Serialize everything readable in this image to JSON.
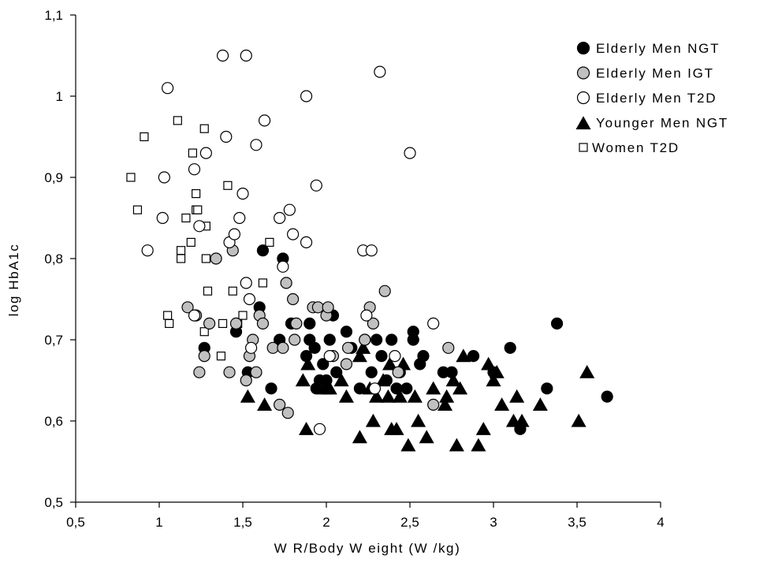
{
  "chart_data": {
    "type": "scatter",
    "title": "",
    "xlabel": "W R/Body W eight (W /kg)",
    "ylabel": "log HbA1c",
    "xlim": [
      0.5,
      4
    ],
    "ylim": [
      0.5,
      1.1
    ],
    "x_ticks": [
      {
        "value": 0.5,
        "label": "0,5"
      },
      {
        "value": 1,
        "label": "1"
      },
      {
        "value": 1.5,
        "label": "1,5"
      },
      {
        "value": 2,
        "label": "2"
      },
      {
        "value": 2.5,
        "label": "2,5"
      },
      {
        "value": 3,
        "label": "3"
      },
      {
        "value": 3.5,
        "label": "3,5"
      },
      {
        "value": 4,
        "label": "4"
      }
    ],
    "y_ticks": [
      {
        "value": 0.5,
        "label": "0,5"
      },
      {
        "value": 0.6,
        "label": "0,6"
      },
      {
        "value": 0.7,
        "label": "0,7"
      },
      {
        "value": 0.8,
        "label": "0,8"
      },
      {
        "value": 0.9,
        "label": "0,9"
      },
      {
        "value": 1.0,
        "label": "1"
      },
      {
        "value": 1.1,
        "label": "1,1"
      }
    ],
    "grid": false,
    "legend_position": "top-right",
    "series": [
      {
        "name": "Elderly Men NGT",
        "marker": "circle",
        "fill": "#000000",
        "points": [
          [
            1.27,
            0.69
          ],
          [
            1.46,
            0.71
          ],
          [
            1.53,
            0.66
          ],
          [
            1.6,
            0.74
          ],
          [
            1.62,
            0.81
          ],
          [
            1.67,
            0.64
          ],
          [
            1.72,
            0.7
          ],
          [
            1.74,
            0.8
          ],
          [
            1.79,
            0.72
          ],
          [
            1.88,
            0.68
          ],
          [
            1.9,
            0.7
          ],
          [
            1.9,
            0.72
          ],
          [
            1.93,
            0.69
          ],
          [
            1.94,
            0.64
          ],
          [
            1.96,
            0.65
          ],
          [
            1.98,
            0.67
          ],
          [
            2.0,
            0.65
          ],
          [
            2.02,
            0.7
          ],
          [
            2.04,
            0.73
          ],
          [
            2.06,
            0.66
          ],
          [
            2.12,
            0.71
          ],
          [
            2.15,
            0.69
          ],
          [
            2.2,
            0.64
          ],
          [
            2.23,
            0.7
          ],
          [
            2.27,
            0.66
          ],
          [
            2.3,
            0.7
          ],
          [
            2.33,
            0.68
          ],
          [
            2.36,
            0.65
          ],
          [
            2.39,
            0.7
          ],
          [
            2.42,
            0.64
          ],
          [
            2.44,
            0.66
          ],
          [
            2.48,
            0.64
          ],
          [
            2.52,
            0.71
          ],
          [
            2.52,
            0.7
          ],
          [
            2.56,
            0.67
          ],
          [
            2.58,
            0.68
          ],
          [
            2.7,
            0.66
          ],
          [
            2.75,
            0.66
          ],
          [
            2.88,
            0.68
          ],
          [
            3.0,
            0.66
          ],
          [
            3.1,
            0.69
          ],
          [
            3.16,
            0.59
          ],
          [
            3.32,
            0.64
          ],
          [
            3.38,
            0.72
          ],
          [
            3.68,
            0.63
          ]
        ]
      },
      {
        "name": "Elderly Men IGT",
        "marker": "circle",
        "fill": "#c0c0c0",
        "points": [
          [
            1.17,
            0.74
          ],
          [
            1.22,
            0.73
          ],
          [
            1.24,
            0.66
          ],
          [
            1.27,
            0.68
          ],
          [
            1.3,
            0.72
          ],
          [
            1.34,
            0.8
          ],
          [
            1.42,
            0.66
          ],
          [
            1.44,
            0.81
          ],
          [
            1.46,
            0.72
          ],
          [
            1.52,
            0.65
          ],
          [
            1.54,
            0.68
          ],
          [
            1.56,
            0.7
          ],
          [
            1.58,
            0.66
          ],
          [
            1.6,
            0.73
          ],
          [
            1.62,
            0.72
          ],
          [
            1.68,
            0.69
          ],
          [
            1.72,
            0.62
          ],
          [
            1.74,
            0.69
          ],
          [
            1.76,
            0.77
          ],
          [
            1.77,
            0.61
          ],
          [
            1.8,
            0.75
          ],
          [
            1.81,
            0.7
          ],
          [
            1.82,
            0.72
          ],
          [
            1.92,
            0.74
          ],
          [
            1.95,
            0.74
          ],
          [
            2.0,
            0.73
          ],
          [
            2.01,
            0.74
          ],
          [
            2.04,
            0.68
          ],
          [
            2.12,
            0.67
          ],
          [
            2.13,
            0.69
          ],
          [
            2.23,
            0.7
          ],
          [
            2.26,
            0.74
          ],
          [
            2.28,
            0.72
          ],
          [
            2.35,
            0.76
          ],
          [
            2.43,
            0.66
          ],
          [
            2.64,
            0.62
          ],
          [
            2.73,
            0.69
          ]
        ]
      },
      {
        "name": "Elderly Men T2D",
        "marker": "circle",
        "fill": "#ffffff",
        "points": [
          [
            0.93,
            0.81
          ],
          [
            1.02,
            0.85
          ],
          [
            1.03,
            0.9
          ],
          [
            1.05,
            1.01
          ],
          [
            1.21,
            0.73
          ],
          [
            1.21,
            0.91
          ],
          [
            1.24,
            0.84
          ],
          [
            1.28,
            0.93
          ],
          [
            1.38,
            1.05
          ],
          [
            1.4,
            0.95
          ],
          [
            1.42,
            0.82
          ],
          [
            1.45,
            0.83
          ],
          [
            1.48,
            0.85
          ],
          [
            1.5,
            0.88
          ],
          [
            1.52,
            0.77
          ],
          [
            1.54,
            0.75
          ],
          [
            1.55,
            0.69
          ],
          [
            1.52,
            1.05
          ],
          [
            1.58,
            0.94
          ],
          [
            1.63,
            0.97
          ],
          [
            1.72,
            0.85
          ],
          [
            1.74,
            0.79
          ],
          [
            1.78,
            0.86
          ],
          [
            1.8,
            0.83
          ],
          [
            1.88,
            1.0
          ],
          [
            1.88,
            0.82
          ],
          [
            1.94,
            0.89
          ],
          [
            1.96,
            0.59
          ],
          [
            2.02,
            0.68
          ],
          [
            2.22,
            0.81
          ],
          [
            2.24,
            0.73
          ],
          [
            2.27,
            0.81
          ],
          [
            2.29,
            0.64
          ],
          [
            2.32,
            1.03
          ],
          [
            2.41,
            0.68
          ],
          [
            2.5,
            0.93
          ],
          [
            2.64,
            0.72
          ]
        ]
      },
      {
        "name": "Younger Men NGT",
        "marker": "triangle",
        "fill": "#000000",
        "points": [
          [
            1.53,
            0.63
          ],
          [
            1.63,
            0.62
          ],
          [
            1.86,
            0.65
          ],
          [
            1.88,
            0.59
          ],
          [
            1.89,
            0.67
          ],
          [
            1.99,
            0.64
          ],
          [
            2.02,
            0.64
          ],
          [
            2.09,
            0.65
          ],
          [
            2.12,
            0.63
          ],
          [
            2.2,
            0.58
          ],
          [
            2.2,
            0.68
          ],
          [
            2.22,
            0.69
          ],
          [
            2.26,
            0.64
          ],
          [
            2.28,
            0.6
          ],
          [
            2.3,
            0.63
          ],
          [
            2.34,
            0.65
          ],
          [
            2.37,
            0.63
          ],
          [
            2.38,
            0.67
          ],
          [
            2.39,
            0.59
          ],
          [
            2.42,
            0.59
          ],
          [
            2.44,
            0.63
          ],
          [
            2.46,
            0.67
          ],
          [
            2.49,
            0.57
          ],
          [
            2.53,
            0.63
          ],
          [
            2.55,
            0.6
          ],
          [
            2.6,
            0.58
          ],
          [
            2.64,
            0.64
          ],
          [
            2.71,
            0.62
          ],
          [
            2.72,
            0.63
          ],
          [
            2.76,
            0.65
          ],
          [
            2.78,
            0.57
          ],
          [
            2.8,
            0.64
          ],
          [
            2.82,
            0.68
          ],
          [
            2.91,
            0.57
          ],
          [
            2.94,
            0.59
          ],
          [
            2.97,
            0.67
          ],
          [
            3.0,
            0.65
          ],
          [
            3.02,
            0.66
          ],
          [
            3.05,
            0.62
          ],
          [
            3.12,
            0.6
          ],
          [
            3.14,
            0.63
          ],
          [
            3.17,
            0.6
          ],
          [
            3.28,
            0.62
          ],
          [
            3.51,
            0.6
          ],
          [
            3.56,
            0.66
          ]
        ]
      },
      {
        "name": "Women T2D",
        "marker": "square",
        "fill": "#ffffff",
        "points": [
          [
            0.83,
            0.9
          ],
          [
            0.87,
            0.86
          ],
          [
            0.91,
            0.95
          ],
          [
            1.05,
            0.73
          ],
          [
            1.06,
            0.72
          ],
          [
            1.11,
            0.97
          ],
          [
            1.13,
            0.81
          ],
          [
            1.13,
            0.8
          ],
          [
            1.16,
            0.85
          ],
          [
            1.19,
            0.82
          ],
          [
            1.2,
            0.93
          ],
          [
            1.22,
            0.88
          ],
          [
            1.22,
            0.86
          ],
          [
            1.23,
            0.86
          ],
          [
            1.27,
            0.96
          ],
          [
            1.27,
            0.71
          ],
          [
            1.28,
            0.84
          ],
          [
            1.28,
            0.8
          ],
          [
            1.29,
            0.76
          ],
          [
            1.37,
            0.68
          ],
          [
            1.38,
            0.72
          ],
          [
            1.41,
            0.89
          ],
          [
            1.44,
            0.76
          ],
          [
            1.47,
            0.72
          ],
          [
            1.5,
            0.73
          ],
          [
            1.62,
            0.77
          ],
          [
            1.66,
            0.82
          ]
        ]
      }
    ]
  }
}
